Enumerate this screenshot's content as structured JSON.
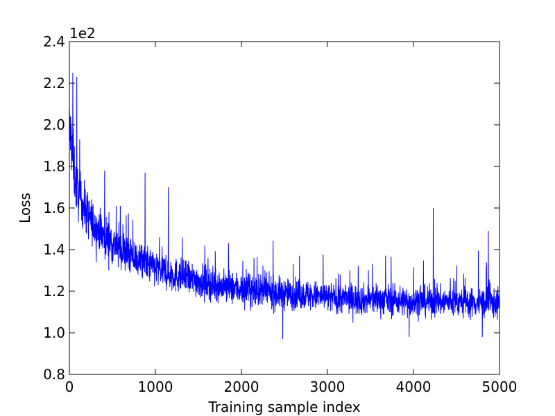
{
  "chart_data": {
    "type": "line",
    "title": "",
    "xlabel": "Training sample index",
    "ylabel": "Loss",
    "offset_text": "1e2",
    "xlim": [
      0,
      5000
    ],
    "ylim": [
      0.8,
      2.4
    ],
    "x_ticks": [
      0,
      1000,
      2000,
      3000,
      4000,
      5000
    ],
    "x_tick_labels": [
      "0",
      "1000",
      "2000",
      "3000",
      "4000",
      "5000"
    ],
    "y_ticks": [
      0.8,
      1.0,
      1.2,
      1.4,
      1.6,
      1.8,
      2.0,
      2.2,
      2.4
    ],
    "y_tick_labels": [
      "0.8",
      "1.0",
      "1.2",
      "1.4",
      "1.6",
      "1.8",
      "2.0",
      "2.2",
      "2.4"
    ],
    "grid": false,
    "legend": "none",
    "series": [
      {
        "color": "#0000ff",
        "x": [
          0,
          25,
          50,
          75,
          100,
          150,
          200,
          250,
          300,
          400,
          500,
          600,
          700,
          800,
          900,
          1000,
          1200,
          1400,
          1600,
          1800,
          2000,
          2200,
          2400,
          2600,
          2800,
          3000,
          3200,
          3400,
          3600,
          3800,
          4000,
          4200,
          4400,
          4600,
          4800,
          5000
        ],
        "mean": [
          2.0,
          1.9,
          1.8,
          1.72,
          1.67,
          1.62,
          1.58,
          1.54,
          1.51,
          1.47,
          1.43,
          1.4,
          1.37,
          1.35,
          1.33,
          1.31,
          1.28,
          1.26,
          1.24,
          1.22,
          1.21,
          1.2,
          1.19,
          1.185,
          1.18,
          1.17,
          1.165,
          1.16,
          1.16,
          1.155,
          1.15,
          1.15,
          1.15,
          1.145,
          1.145,
          1.14
        ],
        "spread": [
          0.15,
          0.14,
          0.13,
          0.12,
          0.11,
          0.1,
          0.1,
          0.1,
          0.095,
          0.09,
          0.09,
          0.085,
          0.085,
          0.08,
          0.08,
          0.08,
          0.075,
          0.075,
          0.07,
          0.07,
          0.07,
          0.07,
          0.07,
          0.065,
          0.065,
          0.065,
          0.065,
          0.065,
          0.065,
          0.065,
          0.065,
          0.065,
          0.065,
          0.065,
          0.065,
          0.065
        ],
        "peaks": [
          [
            40,
            2.25
          ],
          [
            85,
            2.23
          ],
          [
            120,
            1.93
          ],
          [
            410,
            1.78
          ],
          [
            880,
            1.77
          ],
          [
            1150,
            1.7
          ],
          [
            4230,
            1.6
          ],
          [
            4870,
            1.49
          ]
        ],
        "troughs": [
          [
            2480,
            0.97
          ],
          [
            3950,
            0.98
          ],
          [
            4800,
            0.98
          ]
        ]
      }
    ]
  }
}
